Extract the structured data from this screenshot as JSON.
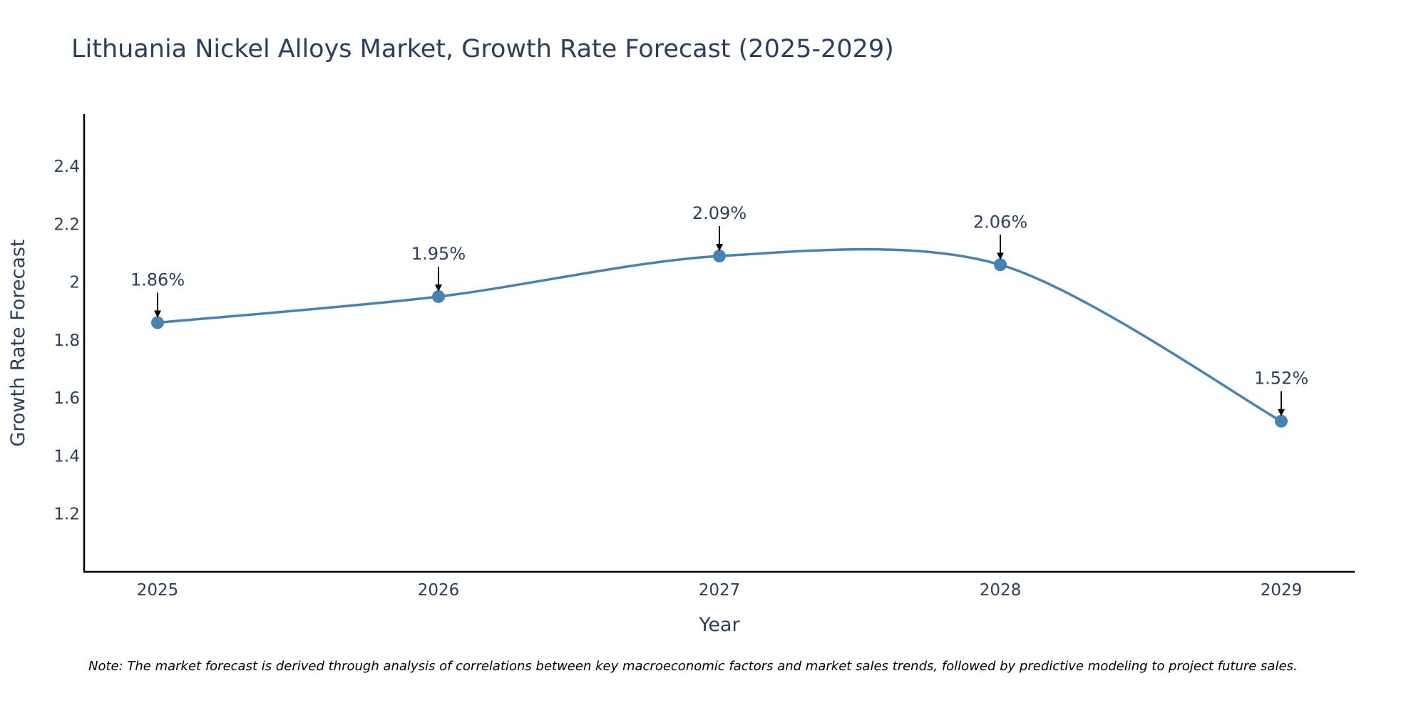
{
  "chart_data": {
    "type": "line",
    "title": "Lithuania Nickel Alloys Market, Growth Rate Forecast (2025-2029)",
    "xlabel": "Year",
    "ylabel": "Growth Rate Forecast",
    "categories": [
      "2025",
      "2026",
      "2027",
      "2028",
      "2029"
    ],
    "series": [
      {
        "name": "Growth Rate Forecast",
        "values": [
          1.86,
          1.95,
          2.09,
          2.06,
          1.52
        ],
        "labels": [
          "1.86%",
          "1.95%",
          "2.09%",
          "2.06%",
          "1.52%"
        ]
      }
    ],
    "ylim": [
      1.0,
      2.58
    ],
    "yticks": [
      1.2,
      1.4,
      1.6,
      1.8,
      2.0,
      2.2,
      2.4
    ],
    "ytick_labels": [
      "1.2",
      "1.4",
      "1.6",
      "1.8",
      "2",
      "2.2",
      "2.4"
    ],
    "grid": false,
    "line_color": "#4682b4",
    "note": "Note: The market forecast is derived through analysis of correlations between key macroeconomic factors and market sales trends, followed by predictive modeling to project future sales."
  }
}
